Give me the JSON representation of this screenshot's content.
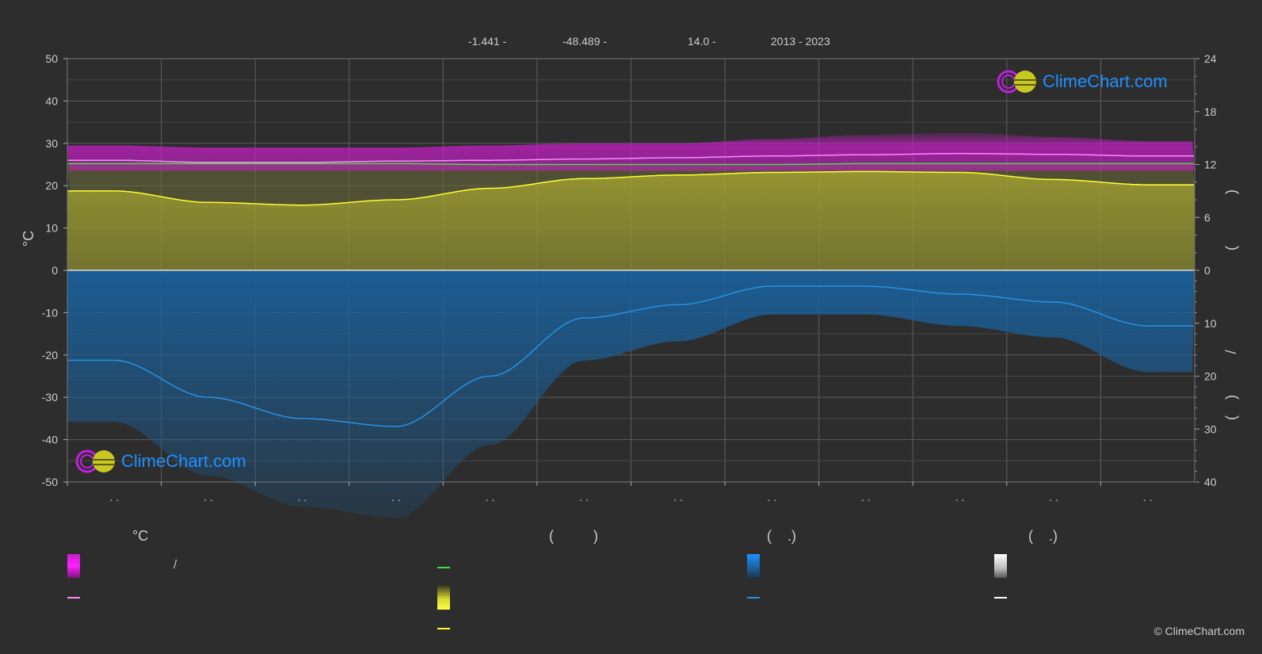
{
  "header": {
    "lat": "-1.441 -",
    "lon": "-48.489 -",
    "elev": "14.0 -",
    "years": "2013 - 2023"
  },
  "logo": {
    "text": "ClimeChart.com"
  },
  "copyright": "© ClimeChart.com",
  "left_axis_unit": "°C",
  "right_axis_fragments": [
    ")",
    "(",
    "/",
    ")",
    "("
  ],
  "legend": {
    "col1_head": "°C",
    "col1_range_sep": "/",
    "col2_head": "(          )",
    "col3_head": "(    .)",
    "col4_head": "(    .)"
  },
  "colors": {
    "background": "#2d2d2d",
    "temp_band": "#c81ec8",
    "temp_line": "#ff88ff",
    "sunshine_fill": "#a0a032",
    "sunshine_line": "#ffff33",
    "daylight_line": "#44dd44",
    "precip_fill": "#1a5f99",
    "precip_line": "#2a90e0",
    "snow": "#ffffff"
  },
  "chart_data": {
    "type": "area",
    "month_labels": [
      ". .",
      ". .",
      ". .",
      ". .",
      ". .",
      ". .",
      ". .",
      ". .",
      ". .",
      ". .",
      ". .",
      ". ."
    ],
    "x_months": [
      0,
      1,
      2,
      3,
      4,
      5,
      6,
      7,
      8,
      9,
      10,
      11
    ],
    "left_axis": {
      "ylim": [
        -50,
        50
      ],
      "ticks": [
        50,
        40,
        30,
        20,
        10,
        0,
        -10,
        -20,
        -30,
        -40,
        -50
      ]
    },
    "right_axis_hours": {
      "ylim": [
        0,
        24
      ],
      "ticks": [
        24,
        18,
        12,
        6,
        0
      ]
    },
    "right_axis_mm": {
      "ylim": [
        0,
        40
      ],
      "ticks": [
        10,
        20,
        30,
        40
      ]
    },
    "grid": true,
    "series": [
      {
        "key": "temp_max_band",
        "values": [
          29.5,
          29.0,
          29.0,
          29.0,
          29.5,
          30.0,
          30.0,
          31.0,
          32.0,
          32.5,
          31.5,
          30.5
        ]
      },
      {
        "key": "temp_min_band",
        "values": [
          23.5,
          23.5,
          23.5,
          23.5,
          23.5,
          23.5,
          23.5,
          23.5,
          23.5,
          23.5,
          23.5,
          23.5
        ]
      },
      {
        "key": "temp_mean",
        "values": [
          26.0,
          25.5,
          25.5,
          25.8,
          26.0,
          26.3,
          26.6,
          27.0,
          27.3,
          27.6,
          27.4,
          27.0
        ]
      },
      {
        "key": "daylight_hours",
        "values": [
          12.1,
          12.1,
          12.1,
          12.1,
          12.0,
          12.0,
          12.0,
          12.0,
          12.1,
          12.1,
          12.1,
          12.1
        ]
      },
      {
        "key": "sunshine_hours",
        "values": [
          9.0,
          7.7,
          7.4,
          8.0,
          9.3,
          10.4,
          10.8,
          11.1,
          11.2,
          11.1,
          10.3,
          9.7
        ]
      },
      {
        "key": "precip_mm",
        "values": [
          17.0,
          24.0,
          28.0,
          29.5,
          20.0,
          9.0,
          6.5,
          3.0,
          3.0,
          4.5,
          6.0,
          10.5
        ]
      }
    ]
  }
}
